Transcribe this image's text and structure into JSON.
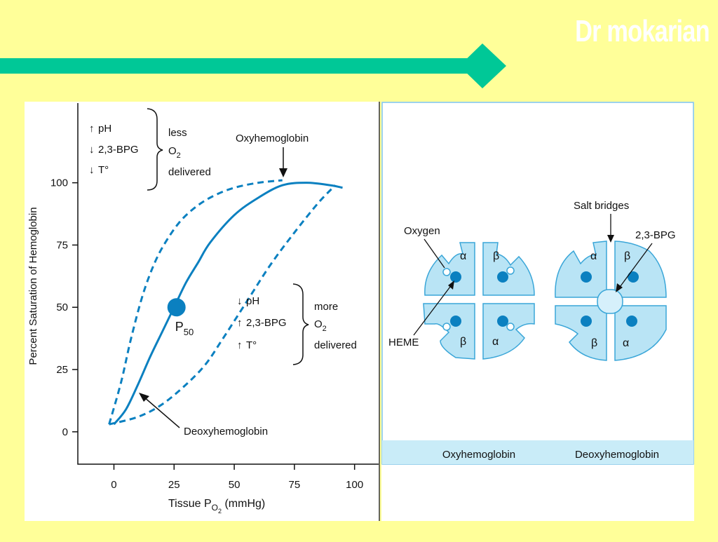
{
  "watermark": "Dr mokarian",
  "colors": {
    "background": "#ffff99",
    "accent_bar": "#00c897",
    "curve": "#0b80c0",
    "subunit_fill": "#b9e4f5",
    "subunit_stroke": "#3aa6d8",
    "heme": "#0b80c0",
    "caption_bar": "#c9ecf8"
  },
  "chart_data": {
    "type": "line",
    "ylabel": "Percent Saturation of Hemoglobin",
    "xlabel": {
      "prefix": "Tissue P",
      "sub1": "O",
      "sub2": "2",
      "suffix": " (mmHg)"
    },
    "xlim": [
      -15,
      110
    ],
    "ylim": [
      -13,
      132
    ],
    "x_ticks": [
      "0",
      "25",
      "50",
      "75",
      "100"
    ],
    "y_ticks": [
      "0",
      "25",
      "50",
      "75",
      "100"
    ],
    "x_tick_values": [
      0,
      25,
      50,
      75,
      100
    ],
    "y_tick_values": [
      0,
      25,
      50,
      75,
      100
    ],
    "series": [
      {
        "name": "Oxyhemoglobin",
        "style": "solid",
        "x": [
          0,
          5,
          10,
          15,
          20,
          25,
          30,
          35,
          40,
          50,
          60,
          70,
          80,
          90,
          95
        ],
        "y": [
          3,
          9,
          19,
          30,
          40,
          50,
          60,
          68,
          76,
          87,
          94,
          99,
          100,
          99,
          98
        ]
      },
      {
        "style": "dashed",
        "x": [
          -2,
          3,
          7,
          12,
          17,
          22,
          28,
          35,
          42,
          50,
          60,
          70
        ],
        "y": [
          3,
          20,
          37,
          55,
          68,
          77,
          85,
          91,
          95,
          98,
          100,
          101
        ]
      },
      {
        "style": "dashed",
        "x": [
          -2,
          10,
          20,
          30,
          38,
          45,
          55,
          65,
          75,
          85,
          92
        ],
        "y": [
          3,
          6,
          11,
          19,
          27,
          37,
          52,
          67,
          80,
          92,
          99
        ]
      }
    ],
    "p50_point": {
      "x": 26,
      "y": 50,
      "label": "P",
      "label_sub": "50"
    },
    "annotations": {
      "oxy_label": "Oxyhemoglobin",
      "deoxy_label": "Deoxyhemoglobin",
      "top_left": {
        "rows": [
          "pH",
          "2,3-BPG",
          "T°"
        ],
        "arrows": [
          "up",
          "down",
          "down"
        ],
        "right": [
          "less",
          "O",
          "2",
          "delivered"
        ]
      },
      "mid_right": {
        "rows": [
          "pH",
          "2,3-BPG",
          "T°"
        ],
        "arrows": [
          "down",
          "up",
          "up"
        ],
        "right": [
          "more",
          "O",
          "2",
          "delivered"
        ]
      }
    }
  },
  "structure": {
    "oxy": {
      "alpha": "α",
      "beta": "β",
      "label_oxygen": "Oxygen",
      "label_heme": "HEME"
    },
    "deoxy": {
      "alpha": "α",
      "beta": "β",
      "label_salt": "Salt bridges",
      "label_bpg": "2,3-BPG"
    },
    "captions": [
      "Oxyhemoglobin",
      "Deoxyhemoglobin"
    ]
  }
}
